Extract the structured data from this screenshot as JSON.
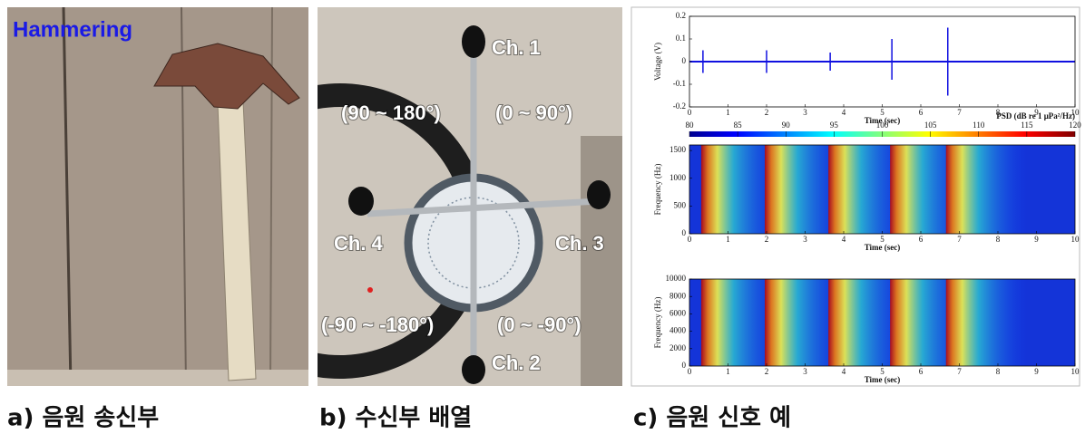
{
  "panels": {
    "a": {
      "label": "Hammering",
      "caption": "a) 음원 송신부"
    },
    "b": {
      "caption": "b) 수신부 배열",
      "channels": [
        "Ch. 1",
        "Ch. 2",
        "Ch. 3",
        "Ch. 4"
      ],
      "ranges": [
        "(90 ~ 180°)",
        "(0 ~ 90°)",
        "(-90 ~ -180°)",
        "(0 ~ -90°)"
      ]
    },
    "c": {
      "caption": "c) 음원 신호 예"
    }
  },
  "chart_data": [
    {
      "type": "waveform",
      "xlabel": "Time (sec)",
      "ylabel": "Voltage (V)",
      "color": "#1010e0",
      "x": [
        0.35,
        2.0,
        3.65,
        5.25,
        6.7
      ],
      "values": [
        0.05,
        0.05,
        0.04,
        0.1,
        0.15
      ],
      "min_values": [
        -0.05,
        -0.05,
        -0.04,
        -0.08,
        -0.15
      ],
      "xlim": [
        0,
        10
      ],
      "xticks": [
        0,
        1,
        2,
        3,
        4,
        5,
        6,
        7,
        8,
        9,
        10
      ],
      "ylim": [
        -0.2,
        0.2
      ],
      "yticks": [
        -0.2,
        -0.1,
        0,
        0.1,
        0.2
      ]
    },
    {
      "type": "spectrogram",
      "xlabel": "Time (sec)",
      "ylabel": "Frequency (Hz)",
      "x": [
        0.35,
        2.0,
        3.65,
        5.25,
        6.7
      ],
      "xlim": [
        0,
        10
      ],
      "xticks": [
        0,
        1,
        2,
        3,
        4,
        5,
        6,
        7,
        8,
        9,
        10
      ],
      "ylim": [
        0,
        1600
      ],
      "yticks": [
        0,
        500,
        1000,
        1500
      ],
      "colorbar": {
        "label": "PSD (dB re 1 μPa²/Hz)",
        "lim": [
          80,
          120
        ],
        "ticks": [
          80,
          85,
          90,
          95,
          100,
          105,
          110,
          115,
          120
        ]
      }
    },
    {
      "type": "spectrogram",
      "xlabel": "Time (sec)",
      "ylabel": "Frequency (Hz)",
      "x": [
        0.35,
        2.0,
        3.65,
        5.25,
        6.7
      ],
      "xlim": [
        0,
        10
      ],
      "xticks": [
        0,
        1,
        2,
        3,
        4,
        5,
        6,
        7,
        8,
        9,
        10
      ],
      "ylim": [
        0,
        10000
      ],
      "yticks": [
        0,
        2000,
        4000,
        6000,
        8000,
        10000
      ]
    }
  ]
}
